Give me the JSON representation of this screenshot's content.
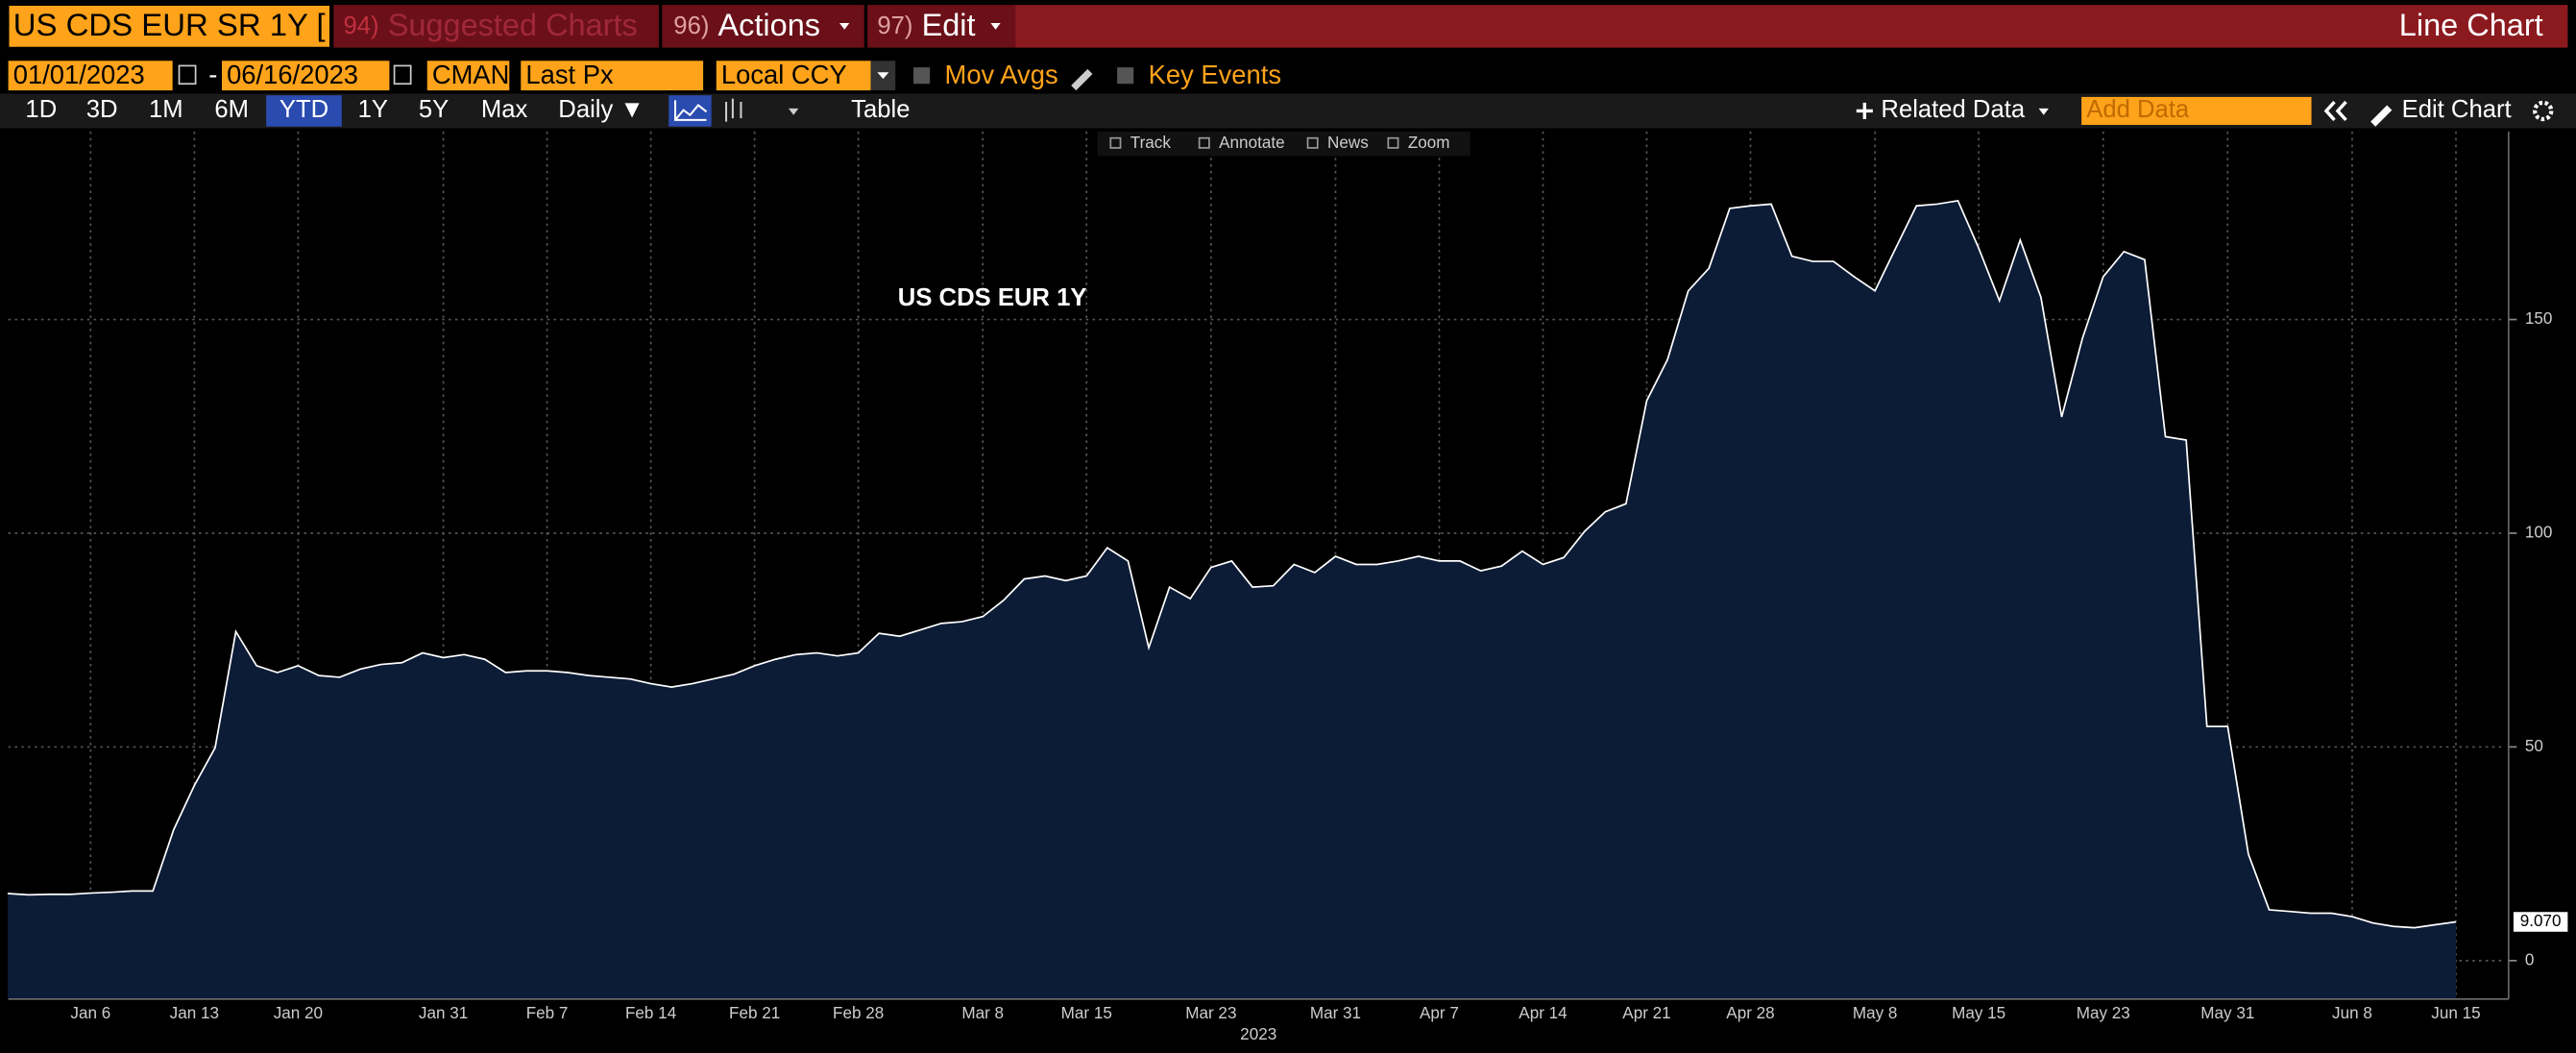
{
  "header": {
    "security": "US CDS EUR SR 1Y [",
    "menus": [
      {
        "num": "94)",
        "label": "Suggested Charts"
      },
      {
        "num": "96)",
        "label": "Actions"
      },
      {
        "num": "97)",
        "label": "Edit"
      }
    ],
    "chart_kind": "Line Chart"
  },
  "controls": {
    "start": "01/01/2023",
    "separator": "-",
    "end": "06/16/2023",
    "source": "CMAN",
    "field": "Last Px",
    "currency": "Local CCY",
    "mov_avgs": "Mov Avgs",
    "key_events": "Key Events"
  },
  "toolbar": {
    "periods": [
      "1D",
      "3D",
      "1M",
      "6M",
      "YTD",
      "1Y",
      "5Y",
      "Max"
    ],
    "frequency": "Daily ▼",
    "table": "Table",
    "related": "Related Data",
    "add_data": "Add Data",
    "edit_chart": "Edit Chart"
  },
  "chart_tools": [
    "Track",
    "Annotate",
    "News",
    "Zoom"
  ],
  "chart_data": {
    "type": "line",
    "annotation": "US CDS EUR 1Y",
    "x_label": "2023",
    "categories": [
      null,
      null,
      null,
      null,
      "Jan 6",
      null,
      null,
      null,
      null,
      "Jan 13",
      null,
      null,
      null,
      null,
      "Jan 20",
      null,
      null,
      null,
      null,
      null,
      null,
      "Jan 31",
      null,
      null,
      null,
      null,
      "Feb 7",
      null,
      null,
      null,
      null,
      "Feb 14",
      null,
      null,
      null,
      null,
      "Feb 21",
      null,
      null,
      null,
      null,
      "Feb 28",
      null,
      null,
      null,
      null,
      null,
      "Mar 8",
      null,
      null,
      null,
      null,
      "Mar 15",
      null,
      null,
      null,
      null,
      null,
      "Mar 23",
      null,
      null,
      null,
      null,
      null,
      "Mar 31",
      null,
      null,
      null,
      null,
      "Apr 7",
      null,
      null,
      null,
      null,
      "Apr 14",
      null,
      null,
      null,
      null,
      "Apr 21",
      null,
      null,
      null,
      null,
      "Apr 28",
      null,
      null,
      null,
      null,
      null,
      "May 8",
      null,
      null,
      null,
      null,
      "May 15",
      null,
      null,
      null,
      null,
      null,
      "May 23",
      null,
      null,
      null,
      null,
      null,
      "May 31",
      null,
      null,
      null,
      null,
      null,
      "Jun 8",
      null,
      null,
      null,
      null,
      "Jun 15"
    ],
    "values": [
      15.7,
      15.4,
      15.5,
      15.5,
      15.8,
      16.0,
      16.3,
      16.3,
      30.6,
      41.0,
      49.8,
      77.0,
      69.0,
      67.4,
      69.0,
      66.7,
      66.3,
      68.2,
      69.3,
      69.7,
      72.0,
      70.9,
      71.6,
      70.5,
      67.4,
      67.8,
      67.8,
      67.4,
      66.7,
      66.3,
      65.9,
      64.8,
      64.0,
      64.8,
      65.9,
      67.0,
      69.0,
      70.5,
      71.6,
      72.0,
      71.3,
      72.0,
      76.6,
      75.9,
      77.4,
      78.9,
      79.3,
      80.5,
      84.3,
      89.3,
      90.0,
      88.9,
      90.0,
      96.6,
      93.5,
      73.2,
      87.4,
      84.7,
      92.0,
      93.5,
      87.4,
      87.7,
      92.7,
      90.8,
      94.6,
      92.7,
      92.7,
      93.5,
      94.6,
      93.5,
      93.5,
      91.2,
      92.3,
      95.8,
      92.7,
      94.3,
      100.4,
      105.0,
      106.9,
      131.0,
      140.6,
      156.7,
      162.0,
      176.0,
      176.6,
      177.0,
      164.8,
      163.6,
      163.6,
      160.0,
      156.7,
      166.7,
      176.6,
      177.0,
      177.8,
      166.7,
      154.4,
      168.6,
      155.2,
      127.2,
      145.6,
      160.0,
      165.9,
      164.0,
      122.6,
      121.8,
      54.8,
      54.8,
      24.9,
      11.9,
      11.5,
      11.1,
      11.1,
      10.3,
      8.8,
      8.0,
      7.7,
      8.4,
      9.07
    ],
    "last_label": "9.070",
    "color": "#ffffff",
    "fill": "#0c1b36",
    "ylim": [
      -9,
      194
    ],
    "yticks": [
      0,
      50,
      100,
      150
    ],
    "grid": true
  }
}
